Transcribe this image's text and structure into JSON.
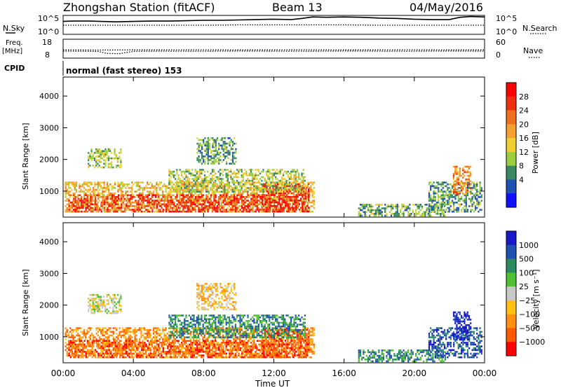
{
  "header": {
    "station": "Zhongshan Station (fitACF)",
    "beam": "Beam 13",
    "date": "04/May/2016"
  },
  "colors": {
    "power_scale": [
      "#1010ff",
      "#2050b0",
      "#3a8a60",
      "#9ccf40",
      "#f0d030",
      "#f5a030",
      "#f07020",
      "#ee3010",
      "#ff0000"
    ],
    "velocity_scale": [
      "#ff0000",
      "#ff5a00",
      "#ff9010",
      "#ffc010",
      "#c8c8c8",
      "#50c030",
      "#2a8a60",
      "#2050b0",
      "#1818c8"
    ]
  },
  "chart_data": [
    {
      "type": "line",
      "name": "nsky-nsearch-panel",
      "left_label": "N.Sky",
      "right_label": "N.Search",
      "left_ticks": [
        "10^5",
        "10^0"
      ],
      "right_ticks": [
        "10^5",
        "10^0"
      ],
      "xlim": [
        0,
        24
      ],
      "ylim_log10": [
        0,
        5
      ],
      "series": [
        {
          "name": "N.Sky",
          "style": "solid",
          "x": [
            0,
            0.5,
            1.5,
            3,
            4,
            5,
            6,
            7,
            8,
            9,
            10,
            11,
            12,
            13,
            13.6,
            14.2,
            15,
            16,
            17,
            18,
            19,
            20,
            21,
            22,
            22.6,
            23.2,
            24
          ],
          "y": [
            3.4,
            3.5,
            3.5,
            3.3,
            3.4,
            3.5,
            3.5,
            3.6,
            3.7,
            3.7,
            3.8,
            3.9,
            4.0,
            3.9,
            4.2,
            4.6,
            4.5,
            4.6,
            4.5,
            4.3,
            4.2,
            4.0,
            3.9,
            3.9,
            4.5,
            4.7,
            4.6
          ]
        },
        {
          "name": "N.Search",
          "style": "dotted",
          "x": [
            0,
            2,
            4,
            6,
            8,
            10,
            12,
            14,
            16,
            18,
            20,
            22,
            24
          ],
          "y": [
            2.4,
            2.4,
            2.4,
            2.4,
            2.4,
            2.5,
            2.5,
            2.5,
            2.5,
            2.4,
            2.4,
            2.4,
            2.4
          ]
        }
      ]
    },
    {
      "type": "line",
      "name": "freq-nave-panel",
      "left_label": "Freq.",
      "left_unit": "[MHz]",
      "right_label": "Nave",
      "left_ticks": [
        "18",
        "8"
      ],
      "right_ticks": [
        "60",
        "0"
      ],
      "xlim": [
        0,
        24
      ],
      "ylim_left": [
        8,
        18
      ],
      "series": [
        {
          "name": "Freq.",
          "style": "dotted",
          "x": [
            0,
            1,
            2,
            2.5,
            3.2,
            4,
            5,
            6,
            8,
            10,
            12,
            14,
            16,
            18,
            20,
            22,
            24
          ],
          "y": [
            10.4,
            10.4,
            10.2,
            9.0,
            8.8,
            10.3,
            10.4,
            10.4,
            10.4,
            10.5,
            10.4,
            10.4,
            10.5,
            10.4,
            10.4,
            10.5,
            10.4
          ]
        },
        {
          "name": "Nave",
          "style": "dotted",
          "x": [
            0,
            2,
            4,
            6,
            8,
            10,
            12,
            14,
            16,
            18,
            20,
            22,
            24
          ],
          "y": [
            11.2,
            11.1,
            11.2,
            11.2,
            11.3,
            11.2,
            11.2,
            11.3,
            11.2,
            11.2,
            11.3,
            11.2,
            11.2
          ]
        }
      ]
    },
    {
      "type": "heatmap",
      "name": "power-panel",
      "cpid_label": "CPID",
      "mode_label": "normal (fast stereo) 153",
      "ylabel": "Slant Range [km]",
      "colorbar_label": "Power [dB]",
      "colorbar_ticks": [
        "28",
        "24",
        "20",
        "16",
        "12",
        "8",
        "4"
      ],
      "colorbar_bounds": [
        0,
        32
      ],
      "xlim": [
        0,
        24
      ],
      "ylim": [
        180,
        4600
      ],
      "yticks": [
        1000,
        2000,
        3000,
        4000
      ],
      "regions": [
        {
          "t": [
            0.1,
            14.3
          ],
          "r": [
            380,
            1300
          ],
          "level": 18
        },
        {
          "t": [
            0.3,
            12.5
          ],
          "r": [
            380,
            900
          ],
          "level": 28
        },
        {
          "t": [
            11.3,
            14.0
          ],
          "r": [
            350,
            1250
          ],
          "level": 30
        },
        {
          "t": [
            1.4,
            3.3
          ],
          "r": [
            1750,
            2350
          ],
          "level": 12
        },
        {
          "t": [
            7.6,
            9.8
          ],
          "r": [
            1850,
            2700
          ],
          "level": 10
        },
        {
          "t": [
            6.0,
            13.8
          ],
          "r": [
            1000,
            1700
          ],
          "level": 13
        },
        {
          "t": [
            16.8,
            21.8
          ],
          "r": [
            200,
            600
          ],
          "level": 10
        },
        {
          "t": [
            20.8,
            23.8
          ],
          "r": [
            350,
            1300
          ],
          "level": 9
        },
        {
          "t": [
            22.2,
            23.2
          ],
          "r": [
            900,
            1800
          ],
          "level": 22
        }
      ]
    },
    {
      "type": "heatmap",
      "name": "velocity-panel",
      "ylabel": "Slant Range [km]",
      "colorbar_label": "Velocity [m s⁻¹]",
      "colorbar_ticks": [
        "1000",
        "500",
        "100",
        "25",
        "−25",
        "−100",
        "−500",
        "−1000"
      ],
      "xlabel": "Time UT",
      "xticks": [
        "00:00",
        "04:00",
        "08:00",
        "12:00",
        "16:00",
        "20:00",
        "00:00"
      ],
      "xtick_values": [
        0,
        4,
        8,
        12,
        16,
        20,
        24
      ],
      "xlim": [
        0,
        24
      ],
      "ylim": [
        180,
        4600
      ],
      "yticks": [
        1000,
        2000,
        3000,
        4000
      ],
      "regions": [
        {
          "t": [
            0.1,
            14.3
          ],
          "r": [
            380,
            1300
          ],
          "level": 2
        },
        {
          "t": [
            0.3,
            12.5
          ],
          "r": [
            380,
            900
          ],
          "level": 1
        },
        {
          "t": [
            11.3,
            14.0
          ],
          "r": [
            350,
            1250
          ],
          "level": 1
        },
        {
          "t": [
            1.4,
            3.3
          ],
          "r": [
            1750,
            2350
          ],
          "level": 4
        },
        {
          "t": [
            7.6,
            9.8
          ],
          "r": [
            1850,
            2700
          ],
          "level": 3
        },
        {
          "t": [
            6.0,
            13.8
          ],
          "r": [
            1000,
            1700
          ],
          "level": 6
        },
        {
          "t": [
            16.8,
            21.8
          ],
          "r": [
            200,
            600
          ],
          "level": 6
        },
        {
          "t": [
            20.8,
            23.8
          ],
          "r": [
            350,
            1300
          ],
          "level": 7
        },
        {
          "t": [
            22.2,
            23.2
          ],
          "r": [
            900,
            1800
          ],
          "level": 8
        }
      ]
    }
  ]
}
